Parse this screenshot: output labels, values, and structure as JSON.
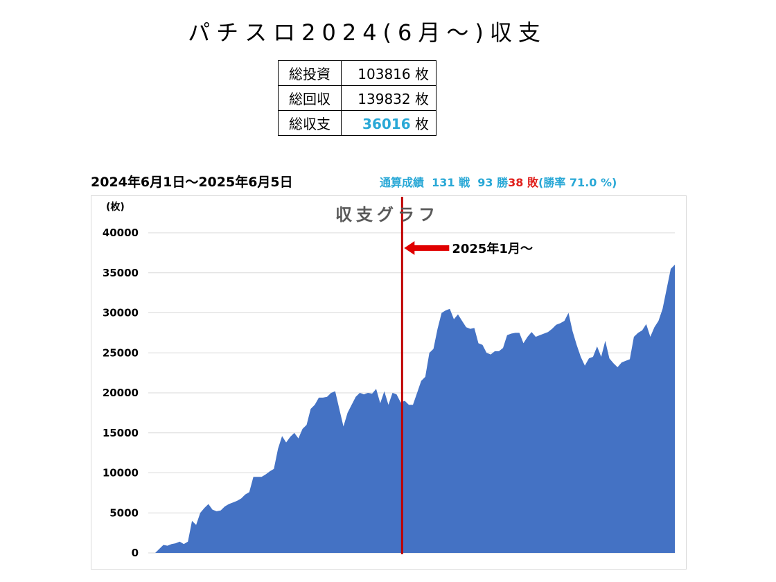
{
  "title": "パチスロ2024(6月〜)収支",
  "summary": [
    {
      "label": "総投資",
      "value": "103816",
      "unit": "枚"
    },
    {
      "label": "総回収",
      "value": "139832",
      "unit": "枚"
    },
    {
      "label": "総収支",
      "value": "36016",
      "unit": "枚",
      "highlight": true
    }
  ],
  "period": "2024年6月1日〜2025年6月5日",
  "record": {
    "label": "通算成績",
    "battles": "131",
    "battles_unit": "戦",
    "wins": "93",
    "wins_unit": "勝",
    "losses": "38",
    "losses_unit": "敗",
    "win_rate_text": "(勝率",
    "win_rate": "71.0",
    "win_rate_unit": "%)"
  },
  "colors": {
    "area": "#4472c4",
    "marker": "#c00000",
    "highlight": "#29a8d6",
    "loss": "#e0201c"
  },
  "chart_data": {
    "type": "area",
    "title": "収支グラフ",
    "ylabel": "(枚)",
    "ylim": [
      0,
      40000
    ],
    "yticks": [
      0,
      5000,
      10000,
      15000,
      20000,
      25000,
      30000,
      35000,
      40000
    ],
    "grid": true,
    "annotation": {
      "text": "2025年1月〜",
      "at_index": 60
    },
    "series": [
      {
        "values": [
          0,
          500,
          1000,
          900,
          1100,
          1200,
          1400,
          1100,
          1400,
          4000,
          3500,
          5000,
          5600,
          6100,
          5400,
          5200,
          5300,
          5800,
          6100,
          6300,
          6500,
          6800,
          7300,
          7600,
          9500,
          9500,
          9500,
          9800,
          10200,
          10500,
          13000,
          14600,
          13800,
          14500,
          15000,
          14300,
          15500,
          16000,
          18000,
          18500,
          19400,
          19400,
          19500,
          20000,
          20200,
          18000,
          15800,
          17500,
          18500,
          19500,
          20000,
          19800,
          20000,
          19900,
          20500,
          18700,
          20200,
          18500,
          20000,
          19800,
          18800,
          19000,
          18500,
          18500,
          20000,
          21500,
          22000,
          25000,
          25500,
          28000,
          30000,
          30300,
          30500,
          29200,
          29800,
          29000,
          28200,
          28000,
          28100,
          26200,
          26000,
          25000,
          24800,
          25200,
          25200,
          25600,
          27200,
          27400,
          27500,
          27500,
          26200,
          27000,
          27600,
          27000,
          27200,
          27400,
          27600,
          28000,
          28500,
          28700,
          29000,
          30000,
          27700,
          26000,
          24500,
          23400,
          24300,
          24500,
          25800,
          24500,
          26500,
          24300,
          23700,
          23200,
          23800,
          24000,
          24200,
          27000,
          27500,
          27800,
          28600,
          27000,
          28200,
          29000,
          30500,
          33000,
          35500,
          36016
        ]
      }
    ]
  }
}
